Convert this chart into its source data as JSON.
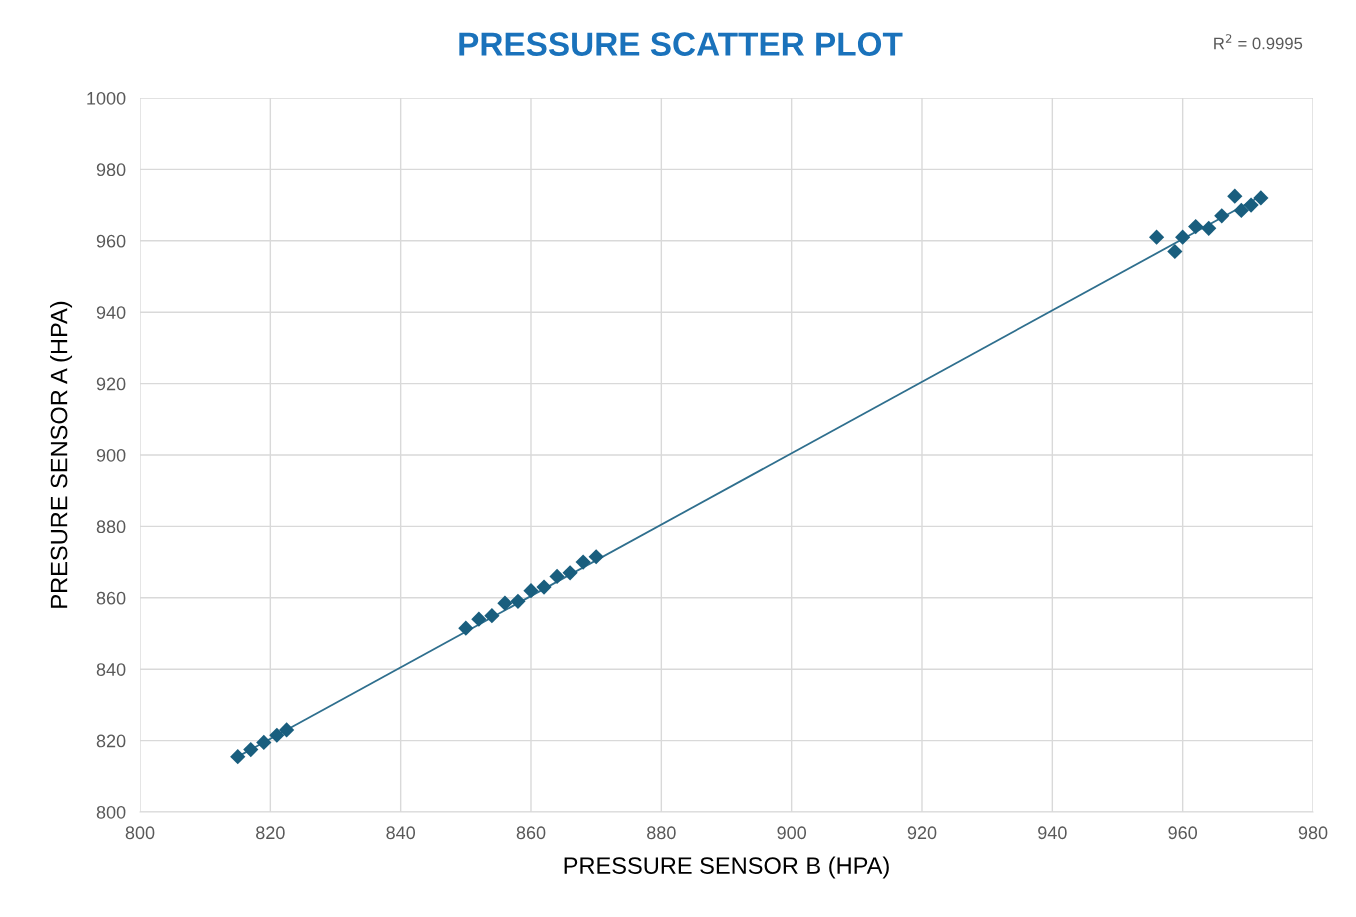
{
  "chart_data": {
    "type": "scatter",
    "title": "PRESSURE SCATTER PLOT",
    "xlabel": "PRESSURE SENSOR B (HPA)",
    "ylabel": "PRESURE SENSOR A (HPA)",
    "annotations": [
      "R$^{2}$ = 0.9995"
    ],
    "xlim": [
      800,
      980
    ],
    "ylim": [
      800,
      1000
    ],
    "xticks": [
      800,
      820,
      840,
      860,
      880,
      900,
      920,
      940,
      960,
      980
    ],
    "yticks": [
      800,
      820,
      840,
      860,
      880,
      900,
      920,
      940,
      960,
      980,
      1000
    ],
    "grid": true,
    "marker": "diamond",
    "series": [
      {
        "color": "#195e7e",
        "x": [
          815,
          817,
          819,
          821,
          822.5,
          850,
          852,
          854,
          856,
          858,
          860,
          862,
          864,
          866,
          868,
          870,
          956,
          958.8,
          960,
          962,
          964,
          966,
          968,
          969,
          970.5,
          972
        ],
        "values": [
          815.5,
          817.5,
          819.5,
          821.5,
          823,
          851.5,
          854,
          855,
          858.5,
          859,
          862,
          863,
          866,
          867,
          870,
          871.5,
          961,
          957,
          961,
          964,
          963.5,
          967,
          972.5,
          968.5,
          970,
          972
        ]
      },
      {
        "type": "line",
        "color": "#2f6f8e",
        "marker": "none",
        "line_style": "solid",
        "x": [
          815,
          972
        ],
        "values": [
          815.5,
          972.5
        ]
      }
    ]
  }
}
